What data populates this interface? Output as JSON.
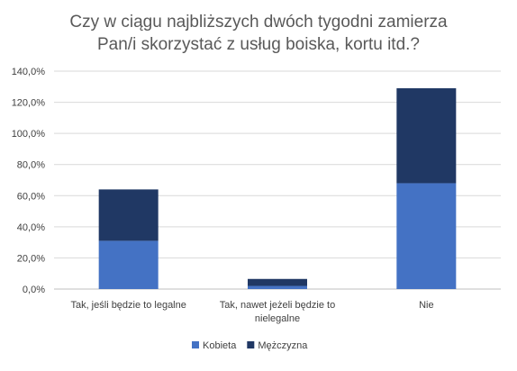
{
  "chart_data": {
    "type": "bar",
    "stacked": true,
    "title_lines": [
      "Czy w ciągu najbliższych dwóch tygodni zamierza",
      "Pan/i skorzystać z usług boiska, kortu itd.?"
    ],
    "categories": [
      [
        "Tak, jeśli będzie to legalne"
      ],
      [
        "Tak, nawet jeżeli będzie to",
        "nielegalne"
      ],
      [
        "Nie"
      ]
    ],
    "series": [
      {
        "name": "Kobieta",
        "color": "#4472c4",
        "values": [
          31.0,
          2.0,
          68.0
        ]
      },
      {
        "name": "Mężczyzna",
        "color": "#203864",
        "values": [
          33.0,
          4.5,
          61.0
        ]
      }
    ],
    "yticks": [
      "0,0%",
      "20,0%",
      "40,0%",
      "60,0%",
      "80,0%",
      "100,0%",
      "120,0%",
      "140,0%"
    ],
    "ylim": [
      0,
      140
    ],
    "grid": true,
    "legend_position": "bottom"
  }
}
